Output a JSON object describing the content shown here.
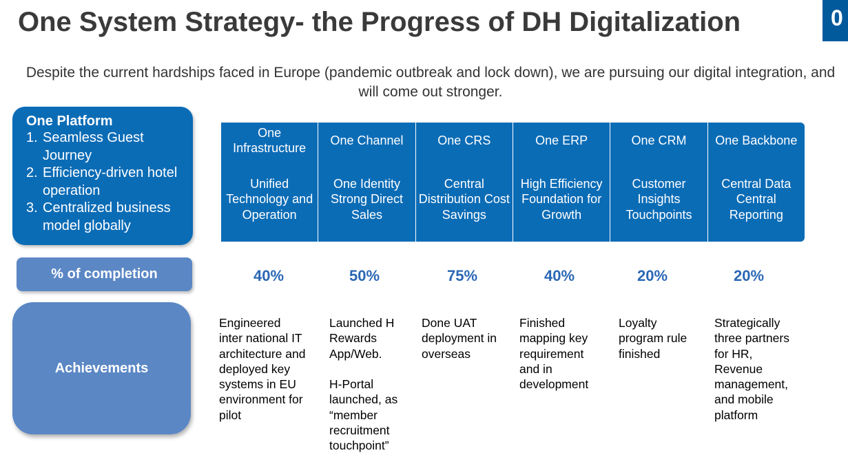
{
  "title": "One System Strategy- the Progress of DH Digitalization",
  "page_number": "0",
  "subtitle": "Despite the current hardships faced in Europe (pandemic outbreak and lock down), we are pursuing our digital integration, and will come out stronger.",
  "platform": {
    "title": "One Platform",
    "items": [
      {
        "num": "1.",
        "text": "Seamless Guest Journey"
      },
      {
        "num": "2.",
        "text": "Efficiency-driven hotel operation"
      },
      {
        "num": "3.",
        "text": "Centralized business model globally"
      }
    ]
  },
  "completion_label": "% of completion",
  "achievements_label": "Achievements",
  "columns": [
    {
      "name": "One Infrastructure",
      "focus": "Unified Technology and Operation",
      "completion": "40%",
      "achievement": "Engineered\ninter national IT\narchitecture and\ndeployed key\nsystems in EU\nenvironment for\npilot"
    },
    {
      "name": "One Channel",
      "focus": "One Identity Strong Direct Sales",
      "completion": "50%",
      "achievement": "Launched H\nRewards\nApp/Web.\n\nH-Portal\nlaunched, as\n“member\nrecruitment\ntouchpoint”"
    },
    {
      "name": "One CRS",
      "focus": "Central Distribution Cost Savings",
      "completion": "75%",
      "achievement": "Done UAT\ndeployment in\noverseas"
    },
    {
      "name": "One ERP",
      "focus": "High Efficiency Foundation for Growth",
      "completion": "40%",
      "achievement": "Finished\nmapping key\nrequirement\nand in\ndevelopment"
    },
    {
      "name": "One CRM",
      "focus": "Customer Insights Touchpoints",
      "completion": "20%",
      "achievement": "Loyalty\nprogram rule\nfinished"
    },
    {
      "name": "One Backbone",
      "focus": "Central Data Central Reporting",
      "completion": "20%",
      "achievement": "Strategically\nthree partners\nfor HR,\nRevenue\nmanagement,\nand mobile\nplatform"
    }
  ]
}
